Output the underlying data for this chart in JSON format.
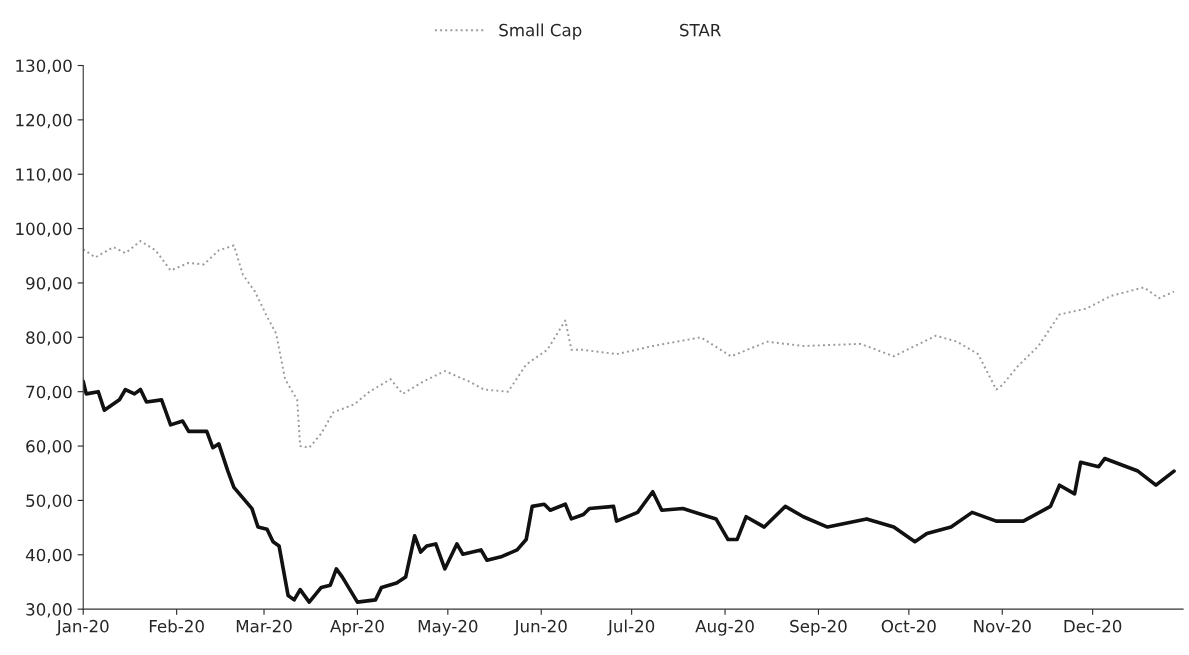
{
  "chart_data": {
    "type": "line",
    "xlim": [
      "2020-01-01",
      "2020-12-31"
    ],
    "xticks": [
      {
        "value": "2020-01-01",
        "label": "Jan-20"
      },
      {
        "value": "2020-02-01",
        "label": "Feb-20"
      },
      {
        "value": "2020-03-01",
        "label": "Mar-20"
      },
      {
        "value": "2020-04-01",
        "label": "Apr-20"
      },
      {
        "value": "2020-05-01",
        "label": "May-20"
      },
      {
        "value": "2020-06-01",
        "label": "Jun-20"
      },
      {
        "value": "2020-07-01",
        "label": "Jul-20"
      },
      {
        "value": "2020-08-01",
        "label": "Aug-20"
      },
      {
        "value": "2020-09-01",
        "label": "Sep-20"
      },
      {
        "value": "2020-10-01",
        "label": "Oct-20"
      },
      {
        "value": "2020-11-01",
        "label": "Nov-20"
      },
      {
        "value": "2020-12-01",
        "label": "Dec-20"
      }
    ],
    "ylim": [
      30,
      130
    ],
    "yticks": [
      {
        "value": 30,
        "label": "30,00"
      },
      {
        "value": 40,
        "label": "40,00"
      },
      {
        "value": 50,
        "label": "50,00"
      },
      {
        "value": 60,
        "label": "60,00"
      },
      {
        "value": 70,
        "label": "70,00"
      },
      {
        "value": 80,
        "label": "80,00"
      },
      {
        "value": 90,
        "label": "90,00"
      },
      {
        "value": 100,
        "label": "100,00"
      },
      {
        "value": 110,
        "label": "110,00"
      },
      {
        "value": 120,
        "label": "120,00"
      },
      {
        "value": 130,
        "label": "130,00"
      }
    ],
    "grid": false,
    "legend": "top",
    "marker": "none",
    "series": [
      {
        "color": "#111111",
        "line_style": "solid",
        "x": [
          "2020-01-01",
          "2020-01-02",
          "2020-01-06",
          "2020-01-08",
          "2020-01-13",
          "2020-01-15",
          "2020-01-18",
          "2020-01-20",
          "2020-01-22",
          "2020-01-27",
          "2020-01-30",
          "2020-02-03",
          "2020-02-05",
          "2020-02-11",
          "2020-02-13",
          "2020-02-15",
          "2020-02-18",
          "2020-02-20",
          "2020-02-26",
          "2020-02-28",
          "2020-03-02",
          "2020-03-04",
          "2020-03-06",
          "2020-03-09",
          "2020-03-11",
          "2020-03-13",
          "2020-03-16",
          "2020-03-20",
          "2020-03-23",
          "2020-03-25",
          "2020-03-27",
          "2020-04-01",
          "2020-04-07",
          "2020-04-09",
          "2020-04-14",
          "2020-04-17",
          "2020-04-20",
          "2020-04-22",
          "2020-04-24",
          "2020-04-27",
          "2020-04-30",
          "2020-05-04",
          "2020-05-06",
          "2020-05-12",
          "2020-05-14",
          "2020-05-19",
          "2020-05-24",
          "2020-05-27",
          "2020-05-29",
          "2020-06-02",
          "2020-06-04",
          "2020-06-09",
          "2020-06-11",
          "2020-06-15",
          "2020-06-17",
          "2020-06-25",
          "2020-06-26",
          "2020-07-03",
          "2020-07-08",
          "2020-07-11",
          "2020-07-18",
          "2020-07-29",
          "2020-08-02",
          "2020-08-05",
          "2020-08-08",
          "2020-08-14",
          "2020-08-21",
          "2020-08-27",
          "2020-09-04",
          "2020-09-17",
          "2020-09-26",
          "2020-10-03",
          "2020-10-07",
          "2020-10-15",
          "2020-10-22",
          "2020-10-30",
          "2020-11-08",
          "2020-11-17",
          "2020-11-20",
          "2020-11-25",
          "2020-11-27",
          "2020-12-03",
          "2020-12-05",
          "2020-12-16",
          "2020-12-22",
          "2020-12-28"
        ],
        "values": [
          71.9,
          69.6,
          70,
          66.6,
          68.5,
          70.4,
          69.6,
          70.4,
          68.1,
          68.5,
          63.9,
          64.6,
          62.7,
          62.7,
          59.7,
          60.4,
          55.4,
          52.4,
          48.5,
          45.1,
          44.7,
          42.4,
          41.6,
          32.5,
          31.7,
          33.6,
          31.3,
          34,
          34.4,
          37.4,
          35.9,
          31.3,
          31.7,
          34,
          34.8,
          35.9,
          43.5,
          40.5,
          41.6,
          42,
          37.4,
          42,
          40.1,
          40.9,
          39,
          39.7,
          40.9,
          42.8,
          48.9,
          49.3,
          48.2,
          49.3,
          46.6,
          47.4,
          48.5,
          48.9,
          46.2,
          47.8,
          51.6,
          48.2,
          48.5,
          46.6,
          42.8,
          42.8,
          47,
          45.1,
          48.9,
          47,
          45.1,
          46.6,
          45.1,
          42.4,
          43.9,
          45.1,
          47.8,
          46.2,
          46.2,
          48.9,
          52.8,
          51.2,
          57,
          56.2,
          57.7,
          55.4,
          52.8,
          55.4
        ]
      },
      {
        "name": "Small Cap",
        "color": "#9a9a9a",
        "line_style": "dotted",
        "x": [
          "2020-01-01",
          "2020-01-05",
          "2020-01-11",
          "2020-01-15",
          "2020-01-20",
          "2020-01-25",
          "2020-01-30",
          "2020-02-05",
          "2020-02-10",
          "2020-02-15",
          "2020-02-20",
          "2020-02-23",
          "2020-02-27",
          "2020-03-02",
          "2020-03-05",
          "2020-03-08",
          "2020-03-12",
          "2020-03-13",
          "2020-03-16",
          "2020-03-20",
          "2020-03-24",
          "2020-03-31",
          "2020-04-05",
          "2020-04-12",
          "2020-04-16",
          "2020-04-23",
          "2020-04-30",
          "2020-05-08",
          "2020-05-13",
          "2020-05-21",
          "2020-05-27",
          "2020-06-03",
          "2020-06-09",
          "2020-06-11",
          "2020-06-15",
          "2020-06-26",
          "2020-07-08",
          "2020-07-24",
          "2020-08-03",
          "2020-08-15",
          "2020-08-27",
          "2020-09-15",
          "2020-09-26",
          "2020-10-10",
          "2020-10-17",
          "2020-10-24",
          "2020-10-30",
          "2020-11-01",
          "2020-11-06",
          "2020-11-13",
          "2020-11-20",
          "2020-11-29",
          "2020-12-07",
          "2020-12-18",
          "2020-12-23",
          "2020-12-28"
        ],
        "values": [
          96.2,
          94.7,
          96.6,
          95.5,
          97.7,
          96,
          92.3,
          93.7,
          93.4,
          96,
          96.9,
          91.5,
          88.4,
          83.8,
          80.7,
          72.3,
          68.5,
          60,
          59.7,
          62.3,
          66.2,
          67.7,
          70,
          72.3,
          69.6,
          71.9,
          73.8,
          71.9,
          70.4,
          70,
          75,
          77.7,
          83.1,
          77.7,
          77.7,
          76.9,
          78.4,
          80,
          76.5,
          79.2,
          78.4,
          78.8,
          76.5,
          80.3,
          79.2,
          76.9,
          70.4,
          71.2,
          74.6,
          78.4,
          84.2,
          85.3,
          87.6,
          89.2,
          87.2,
          88.4
        ]
      },
      {
        "name": "STAR"
      }
    ]
  }
}
